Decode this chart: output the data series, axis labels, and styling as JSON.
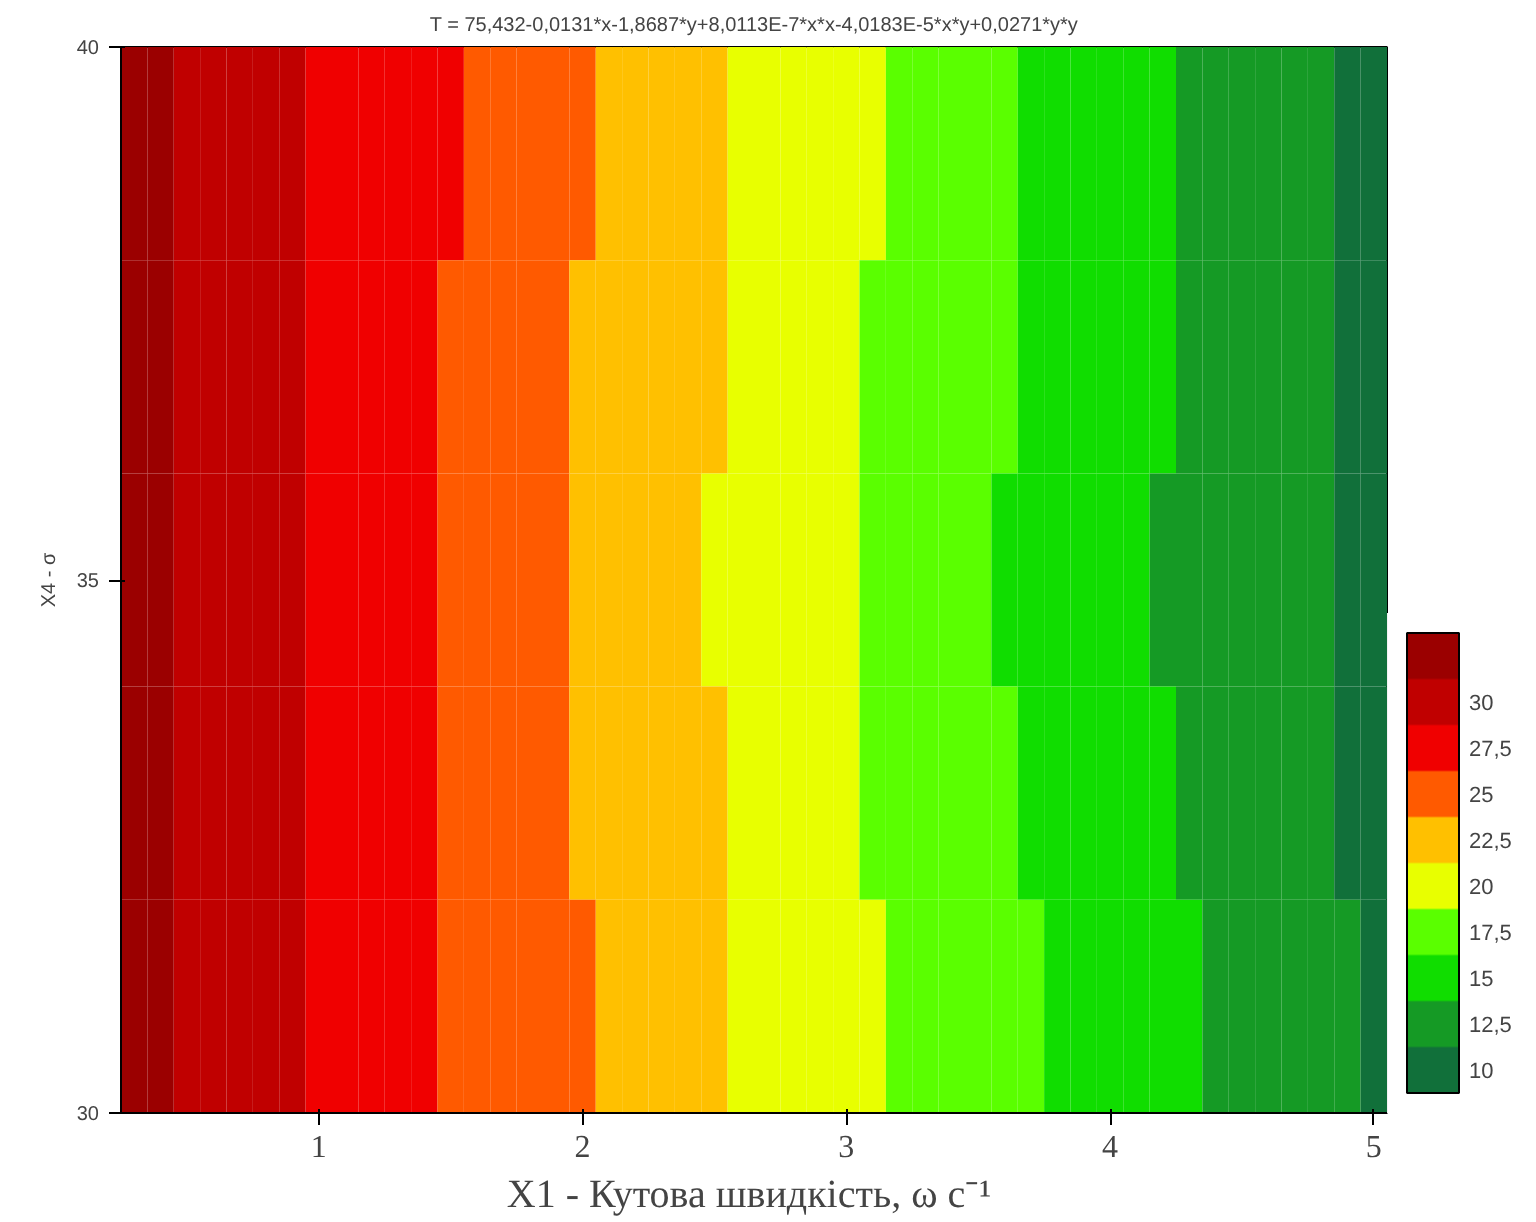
{
  "chart_data": {
    "type": "heatmap",
    "title": "T = 75,432-0,0131*x-1,8687*y+8,0113E-7*x*x-4,0183E-5*x*y+0,0271*y*y",
    "xlabel": "X1 - Кутова швидкість, ω  с⁻¹",
    "ylabel": "X4 - σ",
    "x": [
      0.3,
      0.4,
      0.5,
      0.6,
      0.7,
      0.8,
      0.9,
      1.0,
      1.1,
      1.2,
      1.3,
      1.4,
      1.5,
      1.6,
      1.7,
      1.8,
      1.9,
      2.0,
      2.1,
      2.2,
      2.3,
      2.4,
      2.5,
      2.6,
      2.7,
      2.8,
      2.9,
      3.0,
      3.1,
      3.2,
      3.3,
      3.4,
      3.5,
      3.6,
      3.7,
      3.8,
      3.9,
      4.0,
      4.1,
      4.2,
      4.3,
      4.4,
      4.5,
      4.6,
      4.7,
      4.8,
      4.9,
      5.0
    ],
    "y": [
      39,
      37,
      35,
      33,
      31
    ],
    "cells": [
      [
        32.5,
        32.5,
        30,
        30,
        30,
        30,
        30,
        27.5,
        27.5,
        27.5,
        27.5,
        27.5,
        27.5,
        25,
        25,
        25,
        25,
        25,
        22.5,
        22.5,
        22.5,
        22.5,
        22.5,
        20,
        20,
        20,
        20,
        20,
        20,
        17.5,
        17.5,
        17.5,
        17.5,
        17.5,
        15,
        15,
        15,
        15,
        15,
        15,
        12.5,
        12.5,
        12.5,
        12.5,
        12.5,
        12.5,
        10,
        10
      ],
      [
        32.5,
        32.5,
        30,
        30,
        30,
        30,
        30,
        27.5,
        27.5,
        27.5,
        27.5,
        27.5,
        25,
        25,
        25,
        25,
        25,
        22.5,
        22.5,
        22.5,
        22.5,
        22.5,
        22.5,
        20,
        20,
        20,
        20,
        20,
        17.5,
        17.5,
        17.5,
        17.5,
        17.5,
        17.5,
        15,
        15,
        15,
        15,
        15,
        15,
        12.5,
        12.5,
        12.5,
        12.5,
        12.5,
        12.5,
        10,
        10
      ],
      [
        32.5,
        32.5,
        30,
        30,
        30,
        30,
        30,
        27.5,
        27.5,
        27.5,
        27.5,
        27.5,
        25,
        25,
        25,
        25,
        25,
        22.5,
        22.5,
        22.5,
        22.5,
        22.5,
        20,
        20,
        20,
        20,
        20,
        20,
        17.5,
        17.5,
        17.5,
        17.5,
        17.5,
        15,
        15,
        15,
        15,
        15,
        15,
        12.5,
        12.5,
        12.5,
        12.5,
        12.5,
        12.5,
        12.5,
        10,
        10
      ],
      [
        32.5,
        32.5,
        30,
        30,
        30,
        30,
        30,
        27.5,
        27.5,
        27.5,
        27.5,
        27.5,
        25,
        25,
        25,
        25,
        25,
        22.5,
        22.5,
        22.5,
        22.5,
        22.5,
        22.5,
        20,
        20,
        20,
        20,
        20,
        17.5,
        17.5,
        17.5,
        17.5,
        17.5,
        17.5,
        15,
        15,
        15,
        15,
        15,
        15,
        12.5,
        12.5,
        12.5,
        12.5,
        12.5,
        12.5,
        10,
        10
      ],
      [
        32.5,
        32.5,
        30,
        30,
        30,
        30,
        30,
        27.5,
        27.5,
        27.5,
        27.5,
        27.5,
        25,
        25,
        25,
        25,
        25,
        25,
        22.5,
        22.5,
        22.5,
        22.5,
        22.5,
        20,
        20,
        20,
        20,
        20,
        20,
        17.5,
        17.5,
        17.5,
        17.5,
        17.5,
        17.5,
        15,
        15,
        15,
        15,
        15,
        15,
        12.5,
        12.5,
        12.5,
        12.5,
        12.5,
        12.5,
        10
      ]
    ],
    "colors": [
      "#11703a",
      "#159a25",
      "#10dd00",
      "#5aff00",
      "#e8ff00",
      "#ffc000",
      "#ff5a00",
      "#f00000",
      "#c00000",
      "#9b0000"
    ],
    "xlim": [
      0.25,
      5.05
    ],
    "xticks": [
      1,
      2,
      3,
      4,
      5
    ],
    "ylim": [
      30,
      40
    ],
    "yticks": [
      30,
      35,
      40
    ],
    "clim": [
      8.75,
      33.75
    ],
    "cticks": [
      10,
      {
        "value": 12.5,
        "label": "12,5"
      },
      15,
      {
        "value": 17.5,
        "label": "17,5"
      },
      20,
      {
        "value": 22.5,
        "label": "22,5"
      },
      25,
      {
        "value": 27.5,
        "label": "27,5"
      },
      30
    ],
    "grid": false
  }
}
